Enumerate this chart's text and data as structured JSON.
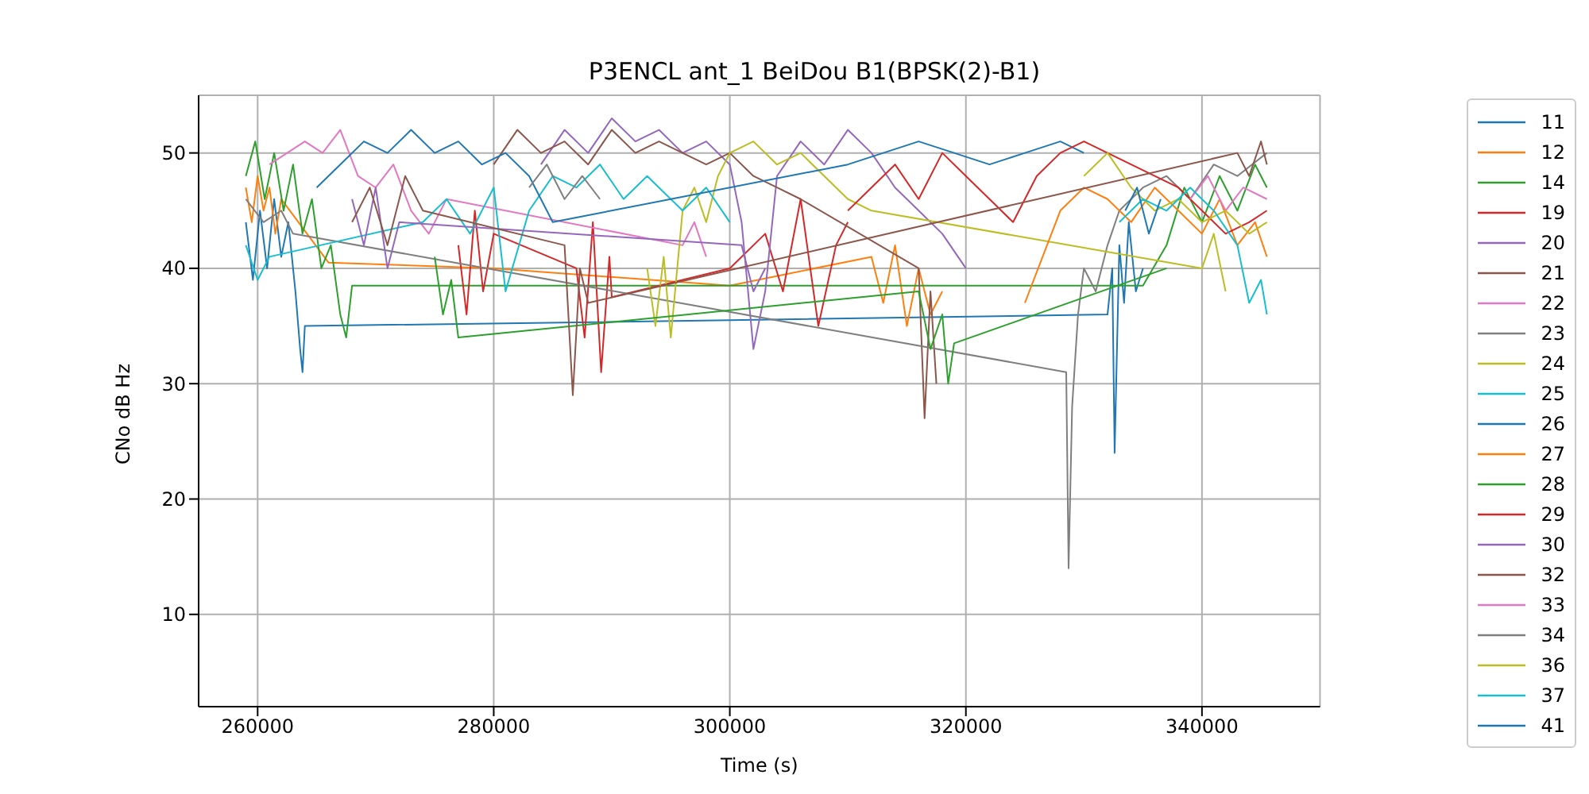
{
  "chart_data": {
    "type": "line",
    "title": "P3ENCL ant_1 BeiDou B1(BPSK(2)-B1)",
    "xlabel": "Time (s)",
    "ylabel": "CNo dB Hz",
    "xlim": [
      255000,
      350000
    ],
    "ylim": [
      2,
      55
    ],
    "xticks": [
      260000,
      280000,
      300000,
      320000,
      340000
    ],
    "yticks": [
      10,
      20,
      30,
      40,
      50
    ],
    "grid": true,
    "legend": "right",
    "marker": "none",
    "line_style": "solid",
    "series": [
      {
        "name": "11",
        "color": "#1f77b4",
        "x": [
          259000,
          259600,
          260200,
          260800,
          261400,
          262000,
          262600,
          263200,
          263600,
          263800,
          264000,
          300000,
          332000,
          332400,
          332600,
          333000,
          333400,
          333800,
          334400,
          335000
        ],
        "values": [
          44,
          39,
          45,
          40,
          46,
          41,
          44,
          38,
          33,
          31,
          35,
          35.5,
          36,
          40,
          24,
          42,
          37,
          44,
          38,
          40
        ]
      },
      {
        "name": "12",
        "color": "#ff7f0e",
        "x": [
          259000,
          259500,
          260000,
          260500,
          261000,
          261500,
          262000,
          266000,
          280000,
          300000,
          312000,
          313000,
          314000,
          315000,
          316000,
          317000,
          318000
        ],
        "values": [
          47,
          44,
          48,
          45,
          47,
          43,
          46,
          40.5,
          40,
          38.5,
          41,
          37,
          42,
          35,
          40,
          36,
          38
        ]
      },
      {
        "name": "14",
        "color": "#2ca02c",
        "x": [
          259000,
          259800,
          260600,
          261400,
          262200,
          263000,
          263800,
          264600,
          265400,
          266200,
          267000,
          267500,
          268000,
          300000,
          335000,
          337000,
          338500,
          340000,
          341500,
          343000,
          344500,
          345500
        ],
        "values": [
          48,
          51,
          46,
          50,
          45,
          49,
          43,
          46,
          40,
          42,
          36,
          34,
          38.5,
          38.5,
          38.5,
          42,
          47,
          44,
          48,
          45,
          49,
          47
        ]
      },
      {
        "name": "19",
        "color": "#d62728",
        "x": [
          277000,
          277700,
          278400,
          279100,
          280000,
          287000,
          287700,
          288400,
          289100,
          289800,
          290000,
          300000,
          303000,
          304500,
          306000,
          307500,
          309000,
          310000
        ],
        "values": [
          42,
          36,
          45,
          38,
          43,
          40,
          34,
          44,
          31,
          41,
          37.5,
          40,
          43,
          38,
          46,
          35,
          42,
          44
        ]
      },
      {
        "name": "20",
        "color": "#9467bd",
        "x": [
          284000,
          286000,
          288000,
          290000,
          292000,
          294000,
          296000,
          298000,
          300000,
          301000,
          302000,
          303000,
          304000,
          306000,
          308000,
          310000,
          312000,
          314000,
          316000,
          318000,
          320000
        ],
        "values": [
          49,
          52,
          50,
          53,
          51,
          52,
          50,
          51,
          49,
          44,
          33,
          38,
          48,
          51,
          49,
          52,
          50,
          47,
          45,
          43,
          40
        ]
      },
      {
        "name": "21",
        "color": "#8c564b",
        "x": [
          280000,
          282000,
          284000,
          286000,
          288000,
          290000,
          292000,
          294000,
          296000,
          298000,
          300000,
          302000,
          304000,
          306000,
          316000,
          316500,
          317000,
          317500
        ],
        "values": [
          49,
          52,
          50,
          51,
          49,
          52,
          50,
          51,
          50,
          49,
          50,
          48,
          47,
          46,
          40,
          27,
          38,
          30
        ]
      },
      {
        "name": "22",
        "color": "#e377c2",
        "x": [
          261000,
          262500,
          264000,
          265500,
          267000,
          268500,
          270000,
          271500,
          273000,
          274500,
          276000,
          296000,
          297000,
          298000
        ],
        "values": [
          49,
          50,
          51,
          50,
          52,
          48,
          47,
          49,
          45,
          43,
          46,
          42,
          44,
          41
        ]
      },
      {
        "name": "23",
        "color": "#7f7f7f",
        "x": [
          259000,
          260500,
          262000,
          263000,
          328500,
          328700,
          329000,
          329500,
          330000,
          331000,
          332000,
          333000,
          335000,
          337000,
          339000,
          341000,
          343000,
          345500
        ],
        "values": [
          46,
          44,
          45,
          43,
          31,
          14,
          28,
          36,
          40,
          38,
          42,
          45,
          47,
          48,
          46,
          49,
          48,
          50
        ]
      },
      {
        "name": "24",
        "color": "#bcbd22",
        "x": [
          293000,
          293700,
          294400,
          295000,
          296000,
          297000,
          298000,
          299000,
          300000,
          302000,
          304000,
          306000,
          308000,
          310000,
          312000,
          340000,
          341000,
          342000
        ],
        "values": [
          40,
          35,
          41,
          34,
          45,
          47,
          44,
          48,
          50,
          51,
          49,
          50,
          48,
          46,
          45,
          40,
          43,
          38
        ]
      },
      {
        "name": "25",
        "color": "#17becf",
        "x": [
          259000,
          260000,
          261000,
          274000,
          276000,
          278000,
          280000,
          281000,
          283000,
          285000,
          287000,
          289000,
          291000,
          293000,
          296000,
          298000,
          300000
        ],
        "values": [
          42,
          39,
          41,
          44,
          46,
          43,
          47,
          38,
          45,
          48,
          47,
          49,
          46,
          48,
          45,
          47,
          44
        ]
      },
      {
        "name": "26",
        "color": "#1f77b4",
        "x": [
          265000,
          267000,
          269000,
          271000,
          273000,
          275000,
          277000,
          279000,
          281000,
          283000,
          285000,
          310000,
          313000,
          316000,
          319000,
          322000,
          325000,
          328000,
          330000
        ],
        "values": [
          47,
          49,
          51,
          50,
          52,
          50,
          51,
          49,
          50,
          48,
          44,
          49,
          50,
          51,
          50,
          49,
          50,
          51,
          50
        ]
      },
      {
        "name": "27",
        "color": "#ff7f0e",
        "x": [
          325000,
          326500,
          328000,
          330000,
          332000,
          334000,
          336000,
          338000,
          340000,
          341500,
          343000,
          344500,
          345500
        ],
        "values": [
          37,
          41,
          45,
          47,
          46,
          44,
          47,
          45,
          43,
          46,
          42,
          44,
          41
        ]
      },
      {
        "name": "28",
        "color": "#2ca02c",
        "x": [
          275000,
          275700,
          276400,
          277000,
          316000,
          317000,
          318000,
          318500,
          319000,
          337000
        ],
        "values": [
          41,
          36,
          39,
          34,
          38,
          33,
          36,
          30,
          33.5,
          40
        ]
      },
      {
        "name": "29",
        "color": "#d62728",
        "x": [
          310000,
          312000,
          314000,
          316000,
          318000,
          320000,
          322000,
          324000,
          326000,
          328000,
          330000,
          332000,
          334000,
          336000,
          338000,
          340000,
          342000,
          344000,
          345500
        ],
        "values": [
          45,
          47,
          49,
          46,
          50,
          48,
          46,
          44,
          48,
          50,
          51,
          50,
          49,
          48,
          47,
          45,
          43,
          44,
          45
        ]
      },
      {
        "name": "30",
        "color": "#9467bd",
        "x": [
          268000,
          269000,
          270000,
          271000,
          272000,
          301000,
          302000,
          303000
        ],
        "values": [
          46,
          42,
          47,
          40,
          44,
          42,
          38,
          40
        ]
      },
      {
        "name": "32",
        "color": "#8c564b",
        "x": [
          268000,
          269500,
          271000,
          272500,
          274000,
          286000,
          286700,
          287300,
          288000,
          343000,
          344000,
          345000,
          345500
        ],
        "values": [
          44,
          47,
          42,
          48,
          45,
          42,
          29,
          40,
          37,
          50,
          48,
          51,
          49
        ]
      },
      {
        "name": "33",
        "color": "#e377c2",
        "x": [
          339000,
          340500,
          342000,
          343500,
          345500
        ],
        "values": [
          46,
          48,
          45,
          47,
          46
        ]
      },
      {
        "name": "34",
        "color": "#7f7f7f",
        "x": [
          283000,
          284500,
          286000,
          287500,
          289000
        ],
        "values": [
          47,
          49,
          46,
          48,
          46
        ]
      },
      {
        "name": "36",
        "color": "#bcbd22",
        "x": [
          330000,
          332000,
          334000,
          336000,
          338000,
          340000,
          342000,
          344000,
          345500
        ],
        "values": [
          48,
          50,
          47,
          45,
          46,
          44,
          45,
          43,
          44
        ]
      },
      {
        "name": "37",
        "color": "#17becf",
        "x": [
          333000,
          335000,
          337000,
          339000,
          341000,
          343000,
          344000,
          345000,
          345500
        ],
        "values": [
          44,
          46,
          45,
          47,
          45,
          42,
          37,
          39,
          36
        ]
      },
      {
        "name": "41",
        "color": "#1f77b4",
        "x": [
          333500,
          334500,
          335500,
          336500
        ],
        "values": [
          45,
          47,
          43,
          46
        ]
      }
    ]
  }
}
